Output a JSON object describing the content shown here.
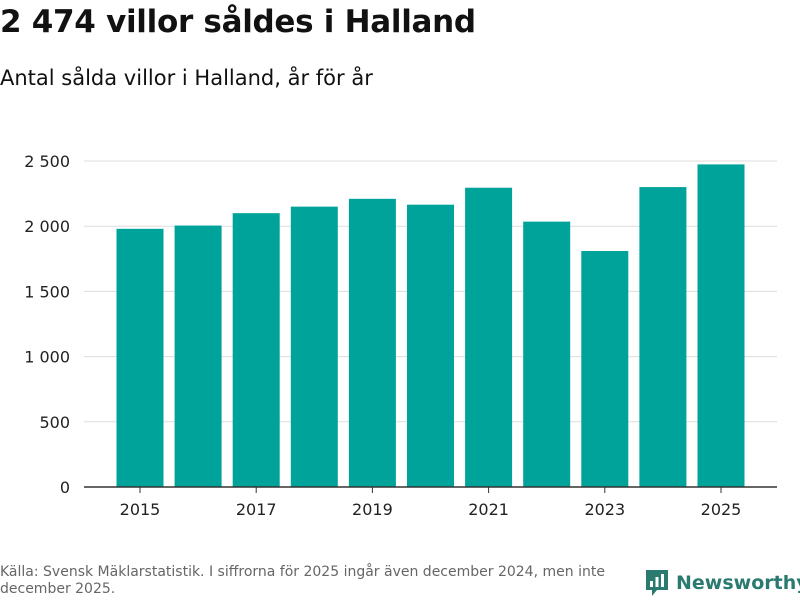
{
  "header": {
    "title": "2 474 villor såldes i Halland",
    "subtitle": "Antal sålda villor i Halland, år för år"
  },
  "footer": {
    "source": "Källa: Svensk Mäklarstatistik. I siffrorna för 2025 ingår även december 2024, men inte december 2025.",
    "logo_text": "Newsworthy"
  },
  "colors": {
    "bar": "#00a39a",
    "grid": "#dddddd",
    "axis": "#333333",
    "logo": "#2a7a70"
  },
  "chart_data": {
    "type": "bar",
    "title": "2 474 villor såldes i Halland",
    "subtitle": "Antal sålda villor i Halland, år för år",
    "xlabel": "",
    "ylabel": "",
    "categories": [
      "2015",
      "2016",
      "2017",
      "2018",
      "2019",
      "2020",
      "2021",
      "2022",
      "2023",
      "2024",
      "2025"
    ],
    "values": [
      1980,
      2005,
      2100,
      2150,
      2210,
      2165,
      2295,
      2035,
      1810,
      2300,
      2474
    ],
    "x_tick_labels": [
      "2015",
      "2017",
      "2019",
      "2021",
      "2023",
      "2025"
    ],
    "y_ticks": [
      0,
      500,
      1000,
      1500,
      2000,
      2500
    ],
    "y_tick_labels": [
      "0",
      "500",
      "1 000",
      "1 500",
      "2 000",
      "2 500"
    ],
    "ylim": [
      0,
      2500
    ],
    "grid": true,
    "legend": "none"
  }
}
